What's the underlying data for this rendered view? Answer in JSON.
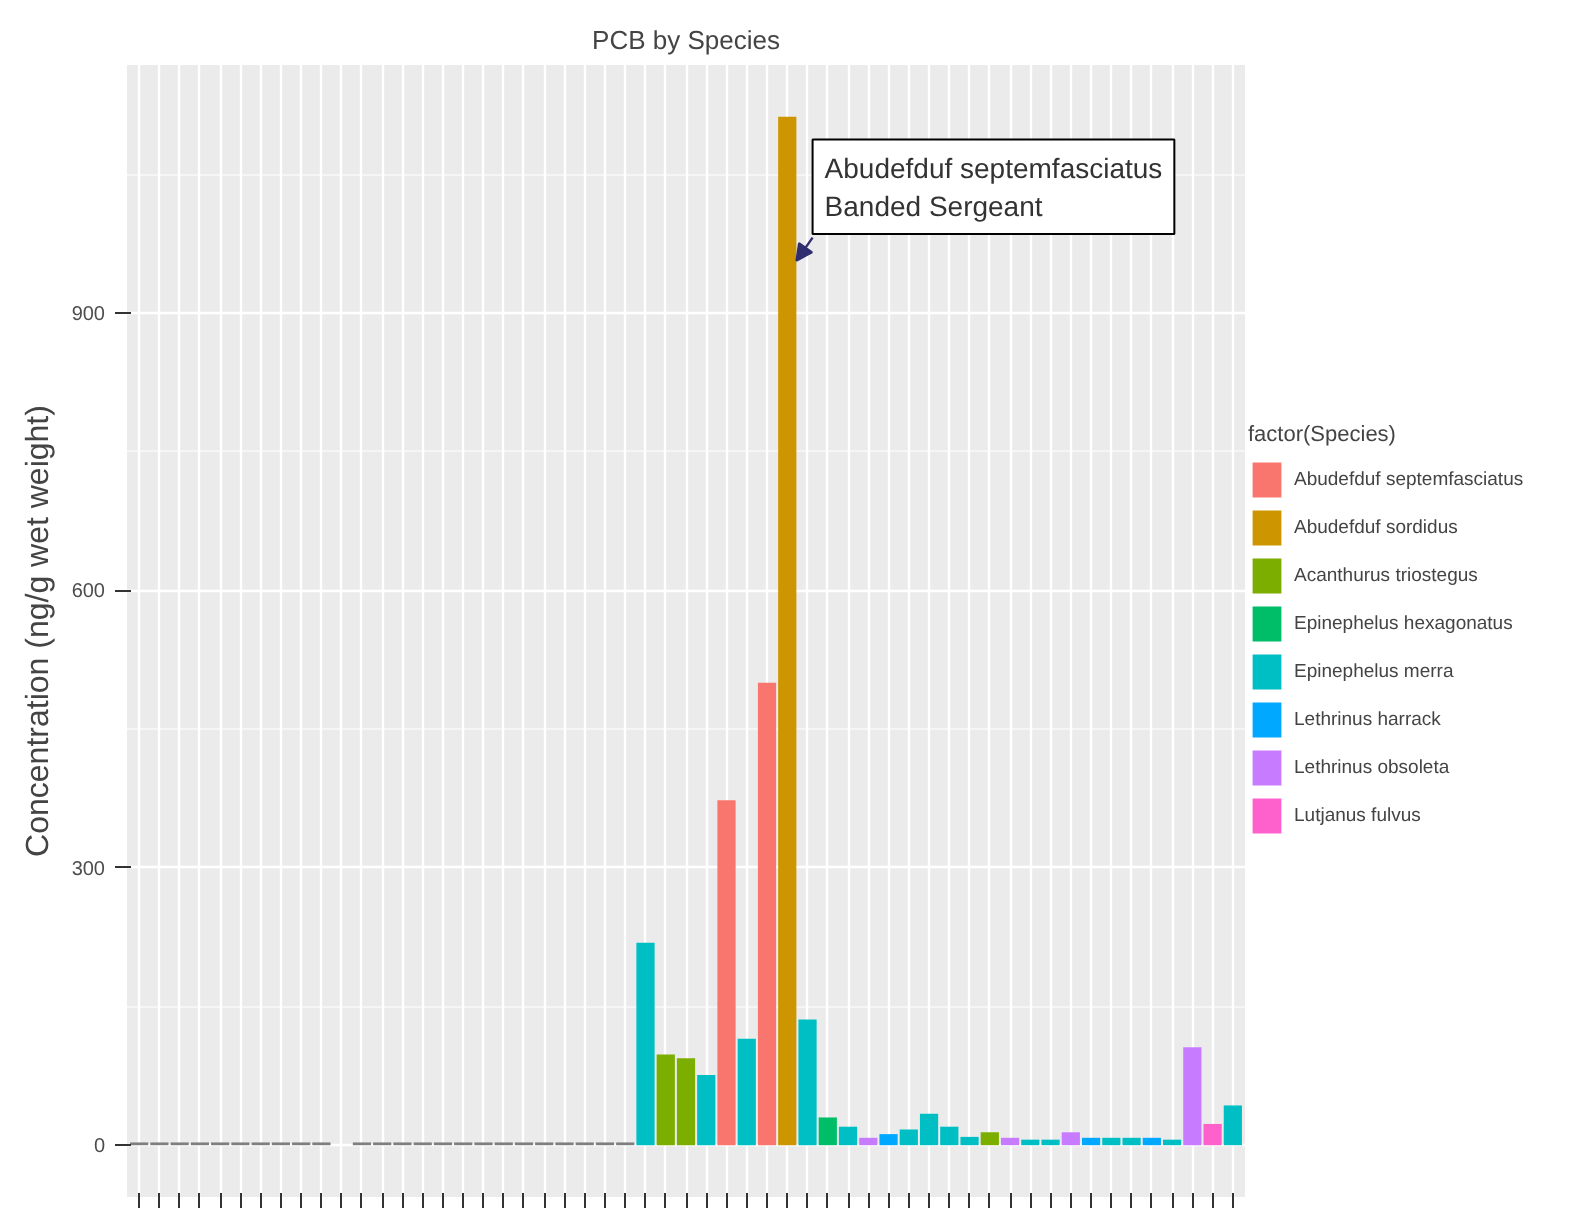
{
  "chart_data": {
    "type": "bar",
    "title": "PCB by Species",
    "ylabel": "Concentration (ng/g wet weight)",
    "legend_title": "factor(Species)",
    "categories": [
      null,
      null,
      null,
      null,
      null,
      null,
      null,
      null,
      null,
      null,
      null,
      null,
      null,
      null,
      null,
      null,
      null,
      null,
      null,
      null,
      null,
      null,
      null,
      null,
      null,
      null,
      null,
      null,
      null,
      null,
      null,
      null,
      null,
      null,
      null,
      null,
      null,
      null,
      null,
      null,
      null,
      null,
      null,
      null,
      null,
      null,
      null,
      null,
      null,
      null,
      null,
      null,
      null,
      null,
      null
    ],
    "series": [
      {
        "name": "Abudefduf septemfasciatus",
        "color": "#f8766d",
        "values": [
          null,
          null,
          null,
          null,
          null,
          null,
          null,
          null,
          null,
          null,
          null,
          null,
          null,
          null,
          null,
          null,
          null,
          null,
          null,
          null,
          null,
          null,
          null,
          null,
          null,
          null,
          null,
          null,
          null,
          373,
          null,
          500,
          null,
          null,
          null,
          null,
          null,
          null,
          null,
          null,
          null,
          null,
          null,
          null,
          null,
          null,
          null,
          null,
          null,
          null,
          null,
          null,
          null,
          null,
          null
        ]
      },
      {
        "name": "Abudefduf sordidus",
        "color": "#cd9600",
        "values": [
          null,
          null,
          null,
          null,
          null,
          null,
          null,
          null,
          null,
          null,
          null,
          null,
          null,
          null,
          null,
          null,
          null,
          null,
          null,
          null,
          null,
          null,
          null,
          null,
          null,
          null,
          null,
          null,
          null,
          null,
          null,
          null,
          1112,
          null,
          null,
          null,
          null,
          null,
          null,
          null,
          null,
          null,
          null,
          null,
          null,
          null,
          null,
          null,
          null,
          null,
          null,
          null,
          null,
          null,
          null
        ]
      },
      {
        "name": "Acanthurus triostegus",
        "color": "#7cae00",
        "values": [
          null,
          null,
          null,
          null,
          null,
          null,
          null,
          null,
          null,
          null,
          null,
          null,
          null,
          null,
          null,
          null,
          null,
          null,
          null,
          null,
          null,
          null,
          null,
          null,
          null,
          null,
          98,
          94,
          null,
          null,
          null,
          null,
          null,
          null,
          null,
          null,
          null,
          null,
          null,
          null,
          null,
          null,
          14,
          null,
          null,
          null,
          null,
          null,
          null,
          null,
          null,
          null,
          null,
          null,
          null
        ]
      },
      {
        "name": "Epinephelus hexagonatus",
        "color": "#00be67",
        "values": [
          null,
          null,
          null,
          null,
          null,
          null,
          null,
          null,
          null,
          null,
          null,
          null,
          null,
          null,
          null,
          null,
          null,
          null,
          null,
          null,
          null,
          null,
          null,
          null,
          null,
          null,
          null,
          null,
          null,
          null,
          null,
          null,
          null,
          null,
          30,
          null,
          null,
          null,
          null,
          null,
          null,
          null,
          null,
          null,
          null,
          null,
          null,
          null,
          null,
          null,
          null,
          null,
          null,
          null,
          null
        ]
      },
      {
        "name": "Epinephelus merra",
        "color": "#00bfc4",
        "values": [
          null,
          null,
          null,
          null,
          null,
          null,
          null,
          null,
          null,
          null,
          null,
          null,
          null,
          null,
          null,
          null,
          null,
          null,
          null,
          null,
          null,
          null,
          null,
          null,
          null,
          219,
          null,
          null,
          76,
          null,
          115,
          null,
          null,
          136,
          null,
          20,
          null,
          null,
          17,
          34,
          20,
          9,
          null,
          null,
          6,
          6,
          null,
          null,
          8,
          8,
          null,
          6,
          null,
          null,
          43
        ]
      },
      {
        "name": "Lethrinus harrack",
        "color": "#00a9ff",
        "values": [
          null,
          null,
          null,
          null,
          null,
          null,
          null,
          null,
          null,
          null,
          null,
          null,
          null,
          null,
          null,
          null,
          null,
          null,
          null,
          null,
          null,
          null,
          null,
          null,
          null,
          null,
          null,
          null,
          null,
          null,
          null,
          null,
          null,
          null,
          null,
          null,
          null,
          12,
          null,
          null,
          null,
          null,
          null,
          null,
          null,
          null,
          null,
          8,
          null,
          null,
          8,
          null,
          null,
          null,
          null
        ]
      },
      {
        "name": "Lethrinus obsoleta",
        "color": "#c77cff",
        "values": [
          null,
          null,
          null,
          null,
          null,
          null,
          null,
          null,
          null,
          null,
          null,
          null,
          null,
          null,
          null,
          null,
          null,
          null,
          null,
          null,
          null,
          null,
          null,
          null,
          null,
          null,
          null,
          null,
          null,
          null,
          null,
          null,
          null,
          null,
          null,
          null,
          8,
          null,
          null,
          null,
          null,
          null,
          null,
          8,
          null,
          null,
          14,
          null,
          null,
          null,
          null,
          null,
          106,
          null,
          null
        ]
      },
      {
        "name": "Lutjanus fulvus",
        "color": "#ff61cc",
        "values": [
          null,
          null,
          null,
          null,
          null,
          null,
          null,
          null,
          null,
          null,
          null,
          null,
          null,
          null,
          null,
          null,
          null,
          null,
          null,
          null,
          null,
          null,
          null,
          null,
          null,
          null,
          null,
          null,
          null,
          null,
          null,
          null,
          null,
          null,
          null,
          null,
          null,
          null,
          null,
          null,
          null,
          null,
          null,
          null,
          null,
          null,
          null,
          null,
          null,
          null,
          null,
          null,
          null,
          23,
          null
        ]
      },
      {
        "color": "#7f7f7f",
        "values": [
          3,
          3,
          3,
          3,
          3,
          3,
          3,
          3,
          3,
          3,
          null,
          3,
          3,
          3,
          3,
          3,
          3,
          3,
          3,
          3,
          3,
          3,
          3,
          3,
          3,
          null,
          null,
          null,
          null,
          null,
          null,
          null,
          null,
          null,
          null,
          null,
          null,
          null,
          null,
          null,
          null,
          null,
          null,
          null,
          null,
          null,
          null,
          null,
          null,
          null,
          null,
          null,
          null,
          null,
          null
        ]
      }
    ],
    "ylim": [
      -56,
      1168
    ],
    "yticks": [
      0,
      300,
      600,
      900
    ],
    "grid": true,
    "legend": "right",
    "tick_labels": "y",
    "annotations": [
      "Abudefduf septemfasciatus\nBanded Sergeant"
    ]
  }
}
